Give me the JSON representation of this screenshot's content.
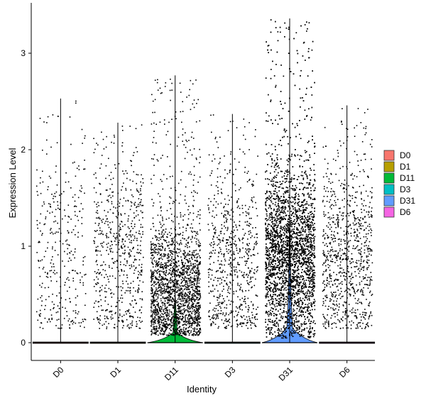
{
  "chart_data": {
    "type": "violin",
    "xlabel": "Identity",
    "ylabel": "Expression Level",
    "ylim": [
      -0.18,
      3.45
    ],
    "yticks": [
      0,
      1,
      2,
      3
    ],
    "grid": false,
    "legend_position": "right",
    "categories": [
      "D0",
      "D1",
      "D11",
      "D3",
      "D31",
      "D6"
    ],
    "series": [
      {
        "name": "D0",
        "color": "#F8766D",
        "max": 2.53,
        "min_nonzero": 0.15,
        "zero_bulk": true,
        "violin_peak": 0.0
      },
      {
        "name": "D1",
        "color": "#B79F00",
        "max": 2.28,
        "min_nonzero": 0.15,
        "zero_bulk": true,
        "violin_peak": 0.0
      },
      {
        "name": "D11",
        "color": "#00BA38",
        "max": 2.77,
        "min_nonzero": 0.08,
        "zero_bulk": true,
        "violin_peak": 0.05
      },
      {
        "name": "D3",
        "color": "#00BFC4",
        "max": 2.37,
        "min_nonzero": 0.15,
        "zero_bulk": true,
        "violin_peak": 0.0
      },
      {
        "name": "D31",
        "color": "#619CFF",
        "max": 3.36,
        "min_nonzero": 0.05,
        "zero_bulk": true,
        "violin_peak": 0.2
      },
      {
        "name": "D6",
        "color": "#F564E3",
        "max": 2.46,
        "min_nonzero": 0.15,
        "zero_bulk": true,
        "violin_peak": 0.0
      }
    ],
    "legend": [
      {
        "label": "D0",
        "color": "#F8766D"
      },
      {
        "label": "D1",
        "color": "#B79F00"
      },
      {
        "label": "D11",
        "color": "#00BA38"
      },
      {
        "label": "D3",
        "color": "#00BFC4"
      },
      {
        "label": "D31",
        "color": "#619CFF"
      },
      {
        "label": "D6",
        "color": "#F564E3"
      }
    ]
  }
}
